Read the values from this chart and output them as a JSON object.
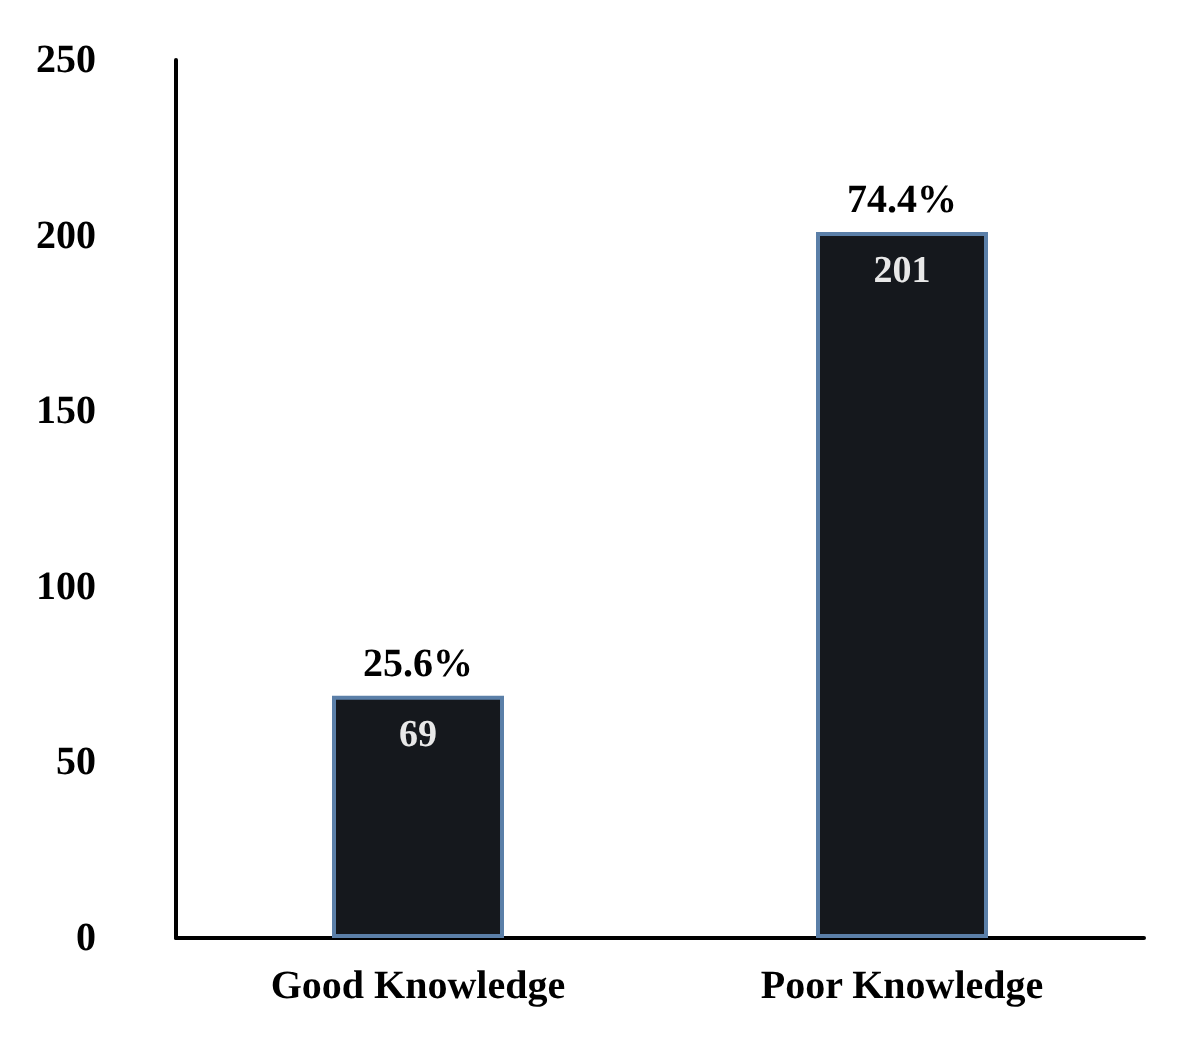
{
  "chart_data": {
    "type": "bar",
    "categories": [
      "Good Knowledge",
      "Poor Knowledge"
    ],
    "values": [
      69,
      201
    ],
    "color": "#15181d",
    "ylim": [
      0,
      250
    ],
    "yticks": [
      0,
      50,
      100,
      150,
      200,
      250
    ],
    "grid": false,
    "data_labels": true,
    "annotations": [
      {
        "text": "25.6%",
        "x": "Good Knowledge",
        "y": 69
      },
      {
        "text": "74.4%",
        "x": "Poor Knowledge",
        "y": 201
      }
    ]
  }
}
